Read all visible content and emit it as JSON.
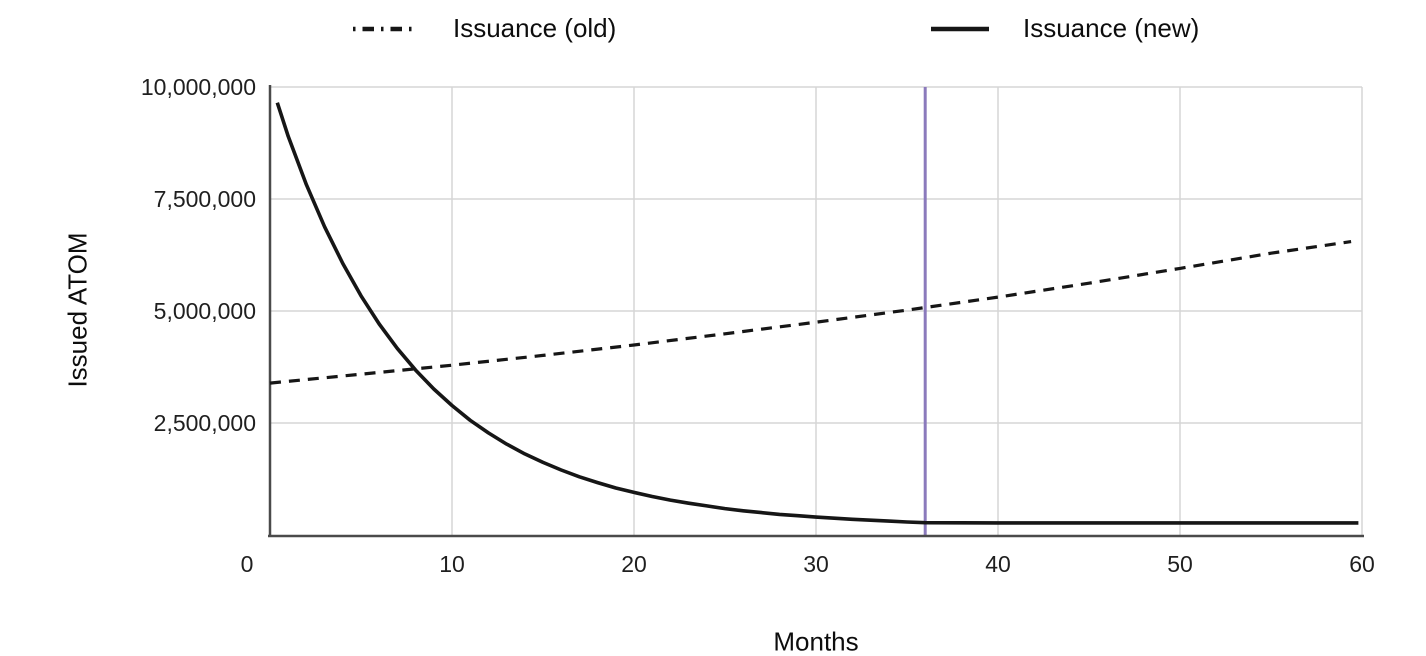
{
  "legend": {
    "items": [
      {
        "label": "Issuance (old)",
        "style": "dashed"
      },
      {
        "label": "Issuance (new)",
        "style": "solid"
      }
    ]
  },
  "chart_data": {
    "type": "line",
    "title": "",
    "xlabel": "Months",
    "ylabel": "Issued ATOM",
    "xlim": [
      0,
      60
    ],
    "ylim": [
      0,
      10000000
    ],
    "grid": true,
    "legend_position": "top",
    "x_ticks": [
      0,
      10,
      20,
      30,
      40,
      50,
      60
    ],
    "x_tick_labels": [
      "0",
      "10",
      "20",
      "30",
      "40",
      "50",
      "60"
    ],
    "y_ticks": [
      2500000,
      5000000,
      7500000,
      10000000
    ],
    "y_tick_labels": [
      "2,500,000",
      "5,000,000",
      "7,500,000",
      "10,000,000"
    ],
    "colors": {
      "line": "#161616",
      "grid": "#d6d6d6",
      "spine": "#4a4a4a",
      "vline": "#8b7abc"
    },
    "annotations": [
      {
        "type": "vline",
        "x": 36
      }
    ],
    "series": [
      {
        "name": "Issuance (old)",
        "style": "dashed",
        "x": [
          0,
          5,
          10,
          15,
          20,
          25,
          30,
          35,
          40,
          45,
          50,
          55,
          59.4
        ],
        "y": [
          3390000,
          3590000,
          3790000,
          4010000,
          4240000,
          4490000,
          4750000,
          5020000,
          5310000,
          5620000,
          5950000,
          6290000,
          6550000
        ]
      },
      {
        "name": "Issuance (new)",
        "style": "solid",
        "x": [
          0.4,
          1,
          2,
          3,
          4,
          5,
          6,
          7,
          8,
          9,
          10,
          11,
          12,
          13,
          14,
          15,
          16,
          17,
          18,
          19,
          20,
          21,
          22,
          23,
          24,
          25,
          26,
          27,
          28,
          29,
          30,
          31,
          32,
          33,
          34,
          35,
          36,
          40,
          45,
          50,
          55,
          59.8
        ],
        "y": [
          9650000,
          8900000,
          7820000,
          6880000,
          6060000,
          5340000,
          4710000,
          4160000,
          3680000,
          3260000,
          2890000,
          2560000,
          2280000,
          2030000,
          1810000,
          1620000,
          1450000,
          1300000,
          1170000,
          1050000,
          950000,
          860000,
          780000,
          710000,
          650000,
          590000,
          540000,
          500000,
          460000,
          430000,
          400000,
          375000,
          350000,
          330000,
          310000,
          290000,
          275000,
          270000,
          270000,
          270000,
          270000,
          270000
        ]
      }
    ]
  }
}
